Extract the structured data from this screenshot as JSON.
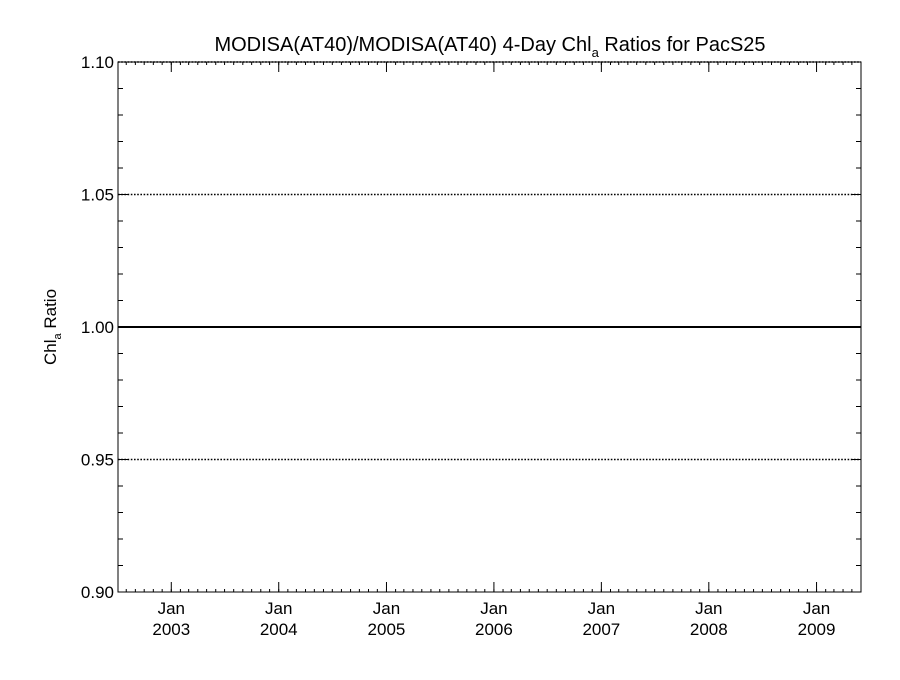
{
  "chart_data": {
    "type": "line",
    "title": {
      "main": "MODISA(AT40)/MODISA(AT40) 4-Day Chl",
      "subscript": "a",
      "suffix": " Ratios for PacS25"
    },
    "ylabel": {
      "main": "Chl",
      "subscript": "a",
      "suffix": " Ratio"
    },
    "xlabel": "",
    "ylim": [
      0.9,
      1.1
    ],
    "xlim": [
      "2002-07-04",
      "2009-06-01"
    ],
    "y_ticks": [
      {
        "value": 0.9,
        "label": "0.90"
      },
      {
        "value": 0.95,
        "label": "0.95"
      },
      {
        "value": 1.0,
        "label": "1.00"
      },
      {
        "value": 1.05,
        "label": "1.05"
      },
      {
        "value": 1.1,
        "label": "1.10"
      }
    ],
    "x_ticks": [
      {
        "date": "2003-01-01",
        "month": "Jan",
        "year": "2003"
      },
      {
        "date": "2004-01-01",
        "month": "Jan",
        "year": "2004"
      },
      {
        "date": "2005-01-01",
        "month": "Jan",
        "year": "2005"
      },
      {
        "date": "2006-01-01",
        "month": "Jan",
        "year": "2006"
      },
      {
        "date": "2007-01-01",
        "month": "Jan",
        "year": "2007"
      },
      {
        "date": "2008-01-01",
        "month": "Jan",
        "year": "2008"
      },
      {
        "date": "2009-01-01",
        "month": "Jan",
        "year": "2009"
      }
    ],
    "reference_lines": [
      {
        "value": 0.95,
        "style": "dotted"
      },
      {
        "value": 1.05,
        "style": "dotted"
      },
      {
        "value": 1.1,
        "style": "dotted"
      }
    ],
    "series": [
      {
        "x": [
          "2002-07-04",
          "2009-06-01"
        ],
        "y": [
          1.0,
          1.0
        ],
        "color": "#000000",
        "style": "solid"
      }
    ],
    "grid": false,
    "legend": "none"
  }
}
